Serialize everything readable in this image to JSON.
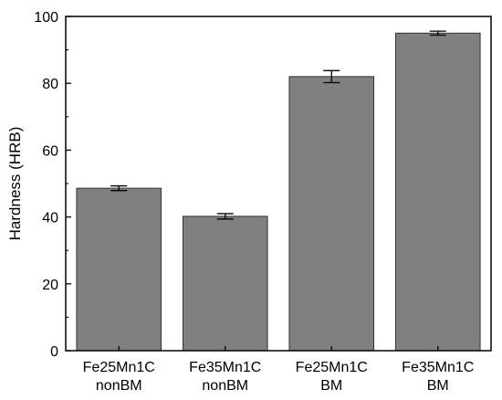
{
  "chart_data": {
    "type": "bar",
    "categories": [
      [
        "Fe25Mn1C",
        "nonBM"
      ],
      [
        "Fe35Mn1C",
        "nonBM"
      ],
      [
        "Fe25Mn1C",
        "BM"
      ],
      [
        "Fe35Mn1C",
        "BM"
      ]
    ],
    "values": [
      48.6,
      40.2,
      82.0,
      95.0
    ],
    "error": [
      0.7,
      0.8,
      1.8,
      0.6
    ],
    "title": "",
    "xlabel": "",
    "ylabel": "Hardness (HRB)",
    "ylim": [
      0,
      100
    ],
    "yticks": [
      0,
      20,
      40,
      60,
      80,
      100
    ],
    "grid": false,
    "bar_color": "#808080",
    "bar_edge_color": "#333333"
  }
}
